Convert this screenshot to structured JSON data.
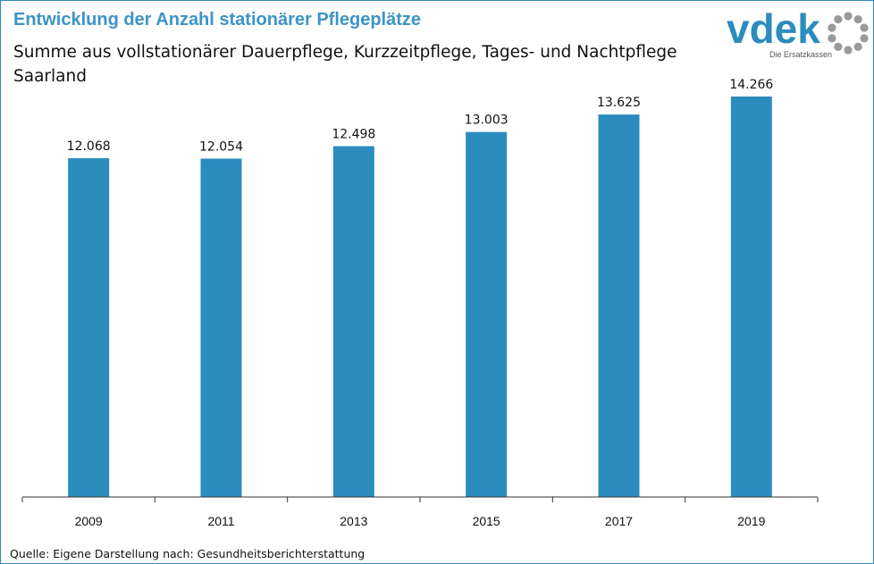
{
  "header": {
    "title": "Entwicklung der Anzahl stationärer Pflegeplätze",
    "subtitle_line1": "Summe aus vollstationärer Dauerpflege, Kurzzeitpflege, Tages- und Nachtpflege",
    "subtitle_line2": "Saarland"
  },
  "logo": {
    "wordmark": "vdek",
    "tagline": "Die Ersatzkassen",
    "ring_color": "#9a9a9a"
  },
  "footer": {
    "source": "Quelle: Eigene Darstellung nach: Gesundheitsberichterstattung"
  },
  "colors": {
    "bar": "#2b8cbe",
    "title": "#3d94c6",
    "axis": "#333333"
  },
  "chart_data": {
    "type": "bar",
    "title": "Entwicklung der Anzahl stationärer Pflegeplätze",
    "categories": [
      "2009",
      "2011",
      "2013",
      "2015",
      "2017",
      "2019"
    ],
    "values": [
      12068,
      12054,
      12498,
      13003,
      13625,
      14266
    ],
    "value_labels": [
      "12.068",
      "12.054",
      "12.498",
      "13.003",
      "13.625",
      "14.266"
    ],
    "xlabel": "",
    "ylabel": "",
    "y_axis_visible": false,
    "grid": false,
    "legend": "none"
  }
}
